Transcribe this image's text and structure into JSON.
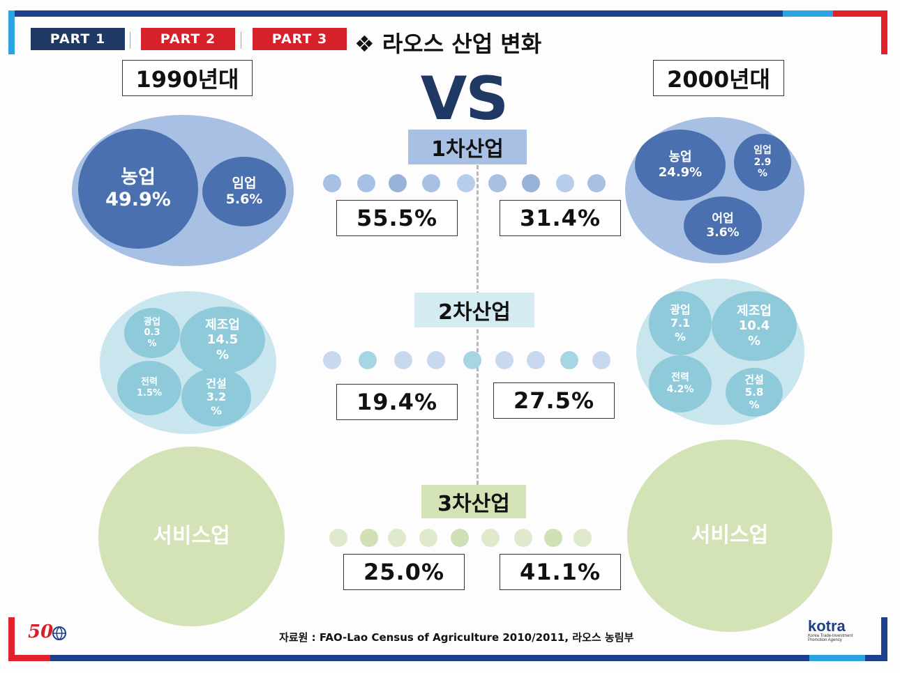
{
  "tabs": [
    "PART 1",
    "PART 2",
    "PART 3"
  ],
  "title": "❖ 라오스 산업 변화",
  "vs": "VS",
  "era_left": "1990년대",
  "era_right": "2000년대",
  "sectors": {
    "primary": {
      "label": "1차산업",
      "left_total": "55.5%",
      "right_total": "31.4%",
      "left": {
        "agriculture": {
          "name": "농업",
          "value": "49.9%"
        },
        "forestry": {
          "name": "임업",
          "value": "5.6%"
        }
      },
      "right": {
        "agriculture": {
          "name": "농업",
          "value": "24.9%"
        },
        "forestry": {
          "name": "임업",
          "value": "2.9",
          "unit": "%"
        },
        "fishery": {
          "name": "어업",
          "value": "3.6%"
        }
      }
    },
    "secondary": {
      "label": "2차산업",
      "left_total": "19.4%",
      "right_total": "27.5%",
      "left": {
        "mining": {
          "name": "광업",
          "value": "0.3",
          "unit": "%"
        },
        "manufacturing": {
          "name": "제조업",
          "value": "14.5",
          "unit": "%"
        },
        "power": {
          "name": "전력",
          "value": "1.5%"
        },
        "construction": {
          "name": "건설",
          "value": "3.2",
          "unit": "%"
        }
      },
      "right": {
        "mining": {
          "name": "광업",
          "value": "7.1",
          "unit": "%"
        },
        "manufacturing": {
          "name": "제조업",
          "value": "10.4",
          "unit": "%"
        },
        "power": {
          "name": "전력",
          "value": "4.2%"
        },
        "construction": {
          "name": "건설",
          "value": "5.8",
          "unit": "%"
        }
      }
    },
    "tertiary": {
      "label": "3차산업",
      "left_total": "25.0%",
      "right_total": "41.1%",
      "left_name": "서비스업",
      "right_name": "서비스업"
    }
  },
  "source": "자료원 : FAO-Lao Census of Agriculture 2010/2011, 라오스 농림부",
  "logo_left": "50",
  "logo_right": {
    "name": "kotra",
    "sub1": "Korea Trade-Investment",
    "sub2": "Promotion Agency"
  },
  "colors": {
    "navy": "#1f3864",
    "red": "#d6202a",
    "blue_dark": "#4a70b0",
    "blue_light": "#a7c0e4",
    "teal_light": "#c9e6ee",
    "teal": "#8fcadb",
    "green": "#d4e3b6"
  }
}
